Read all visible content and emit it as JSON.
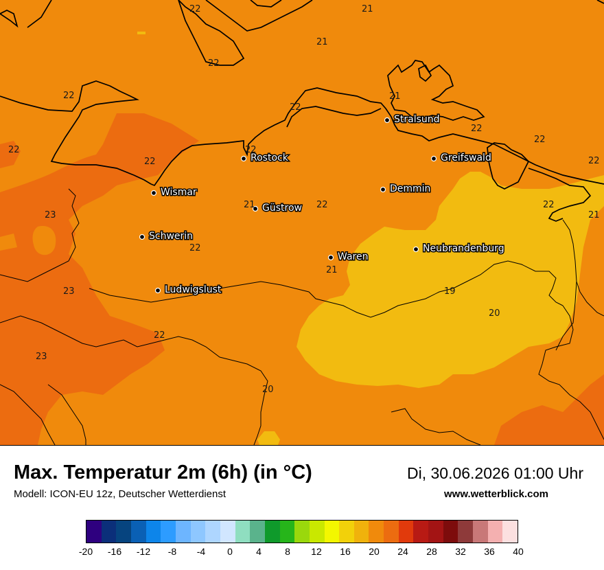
{
  "map": {
    "cities": [
      {
        "name": "Stralsund"
      },
      {
        "name": "Rostock"
      },
      {
        "name": "Greifswald"
      },
      {
        "name": "Wismar"
      },
      {
        "name": "Demmin"
      },
      {
        "name": "Güstrow"
      },
      {
        "name": "Schwerin"
      },
      {
        "name": "Neubrandenburg"
      },
      {
        "name": "Waren"
      },
      {
        "name": "Ludwigslust"
      }
    ],
    "values": [
      "22",
      "21",
      "21",
      "22",
      "22",
      "21",
      "22",
      "22",
      "22",
      "22",
      "22",
      "22",
      "22",
      "22",
      "21",
      "22",
      "23",
      "22",
      "21",
      "21",
      "23",
      "19",
      "20",
      "22",
      "23",
      "20"
    ],
    "colors": {
      "orange_22": "#f08a0c",
      "orange_24": "#ec6c10",
      "yellow_20": "#f2bb10"
    }
  },
  "footer": {
    "title": "Max. Temperatur 2m (6h) (in °C)",
    "model": "Modell: ICON-EU 12z, Deutscher Wetterdienst",
    "datetime": "Di, 30.06.2026 01:00 Uhr",
    "website": "www.wetterblick.com"
  },
  "legend": {
    "colors": [
      "#2e007f",
      "#0b2f7a",
      "#06447f",
      "#0a60b5",
      "#0d85ea",
      "#2d9cff",
      "#6db5ff",
      "#8ec7ff",
      "#aed6ff",
      "#d1e6ff",
      "#8fdec0",
      "#5ab38c",
      "#0f9a2b",
      "#26b51a",
      "#9ad80c",
      "#c9e800",
      "#f3f700",
      "#f2d10a",
      "#f0b20c",
      "#f08a0c",
      "#ec6c10",
      "#e13a0c",
      "#b81a14",
      "#a31414",
      "#7d0c0c",
      "#8e3a3a",
      "#c87878",
      "#f4b0b0",
      "#fce0e0"
    ],
    "ticks": [
      "-20",
      "-16",
      "-12",
      "-8",
      "-4",
      "0",
      "4",
      "8",
      "12",
      "16",
      "20",
      "24",
      "28",
      "32",
      "36",
      "40"
    ]
  }
}
